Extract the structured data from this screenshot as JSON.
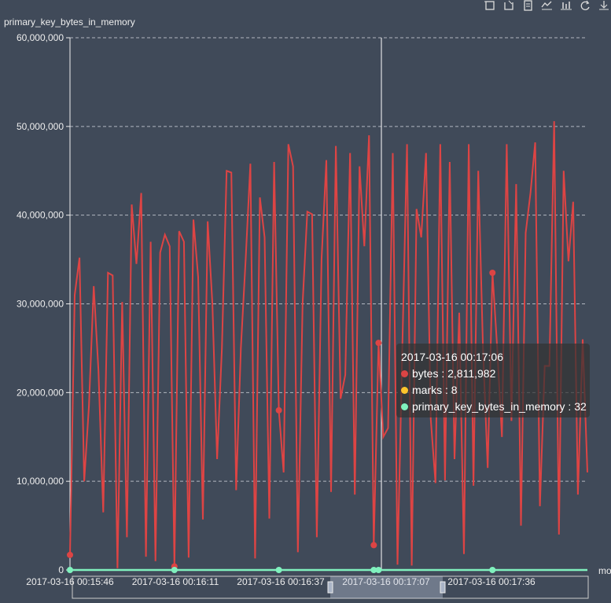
{
  "toolbox": {
    "icons": [
      "zoom-icon",
      "zoom-reset-icon",
      "data-view-icon",
      "line-type-icon",
      "bar-type-icon",
      "restore-icon",
      "save-image-icon"
    ]
  },
  "tooltip": {
    "title": "2017-03-16 00:17:06",
    "rows": [
      {
        "label": "bytes",
        "value": "2,811,982",
        "color": "#dd4444"
      },
      {
        "label": "marks",
        "value": "8",
        "color": "#fec42c"
      },
      {
        "label": "primary_key_bytes_in_memory",
        "value": "32",
        "color": "#80f1be"
      }
    ]
  },
  "chart_data": {
    "type": "line",
    "title": "",
    "ylabel": "primary_key_bytes_in_memory",
    "xlabel": "mo",
    "ylim": [
      0,
      60000000
    ],
    "yticks": [
      "0",
      "10,000,000",
      "20,000,000",
      "30,000,000",
      "40,000,000",
      "50,000,000",
      "60,000,000"
    ],
    "xticks": [
      "2017-03-16 00:15:46",
      "2017-03-16 00:16:11",
      "2017-03-16 00:16:37",
      "2017-03-16 00:17:07",
      "2017-03-16 00:17:36"
    ],
    "grid": true,
    "colors": {
      "bytes": "#dd4444",
      "marks": "#fec42c",
      "primary_key_bytes_in_memory": "#80f1be"
    },
    "cursor_x": "2017-03-16 00:17:06",
    "series": [
      {
        "name": "bytes",
        "values": [
          1700000,
          31000000,
          35200000,
          10000000,
          18500000,
          32000000,
          22500000,
          6500000,
          33500000,
          33200000,
          200000,
          30200000,
          3700000,
          41200000,
          34500000,
          42500000,
          1500000,
          37000000,
          1000000,
          35800000,
          37800000,
          36500000,
          400000,
          38200000,
          37000000,
          1400000,
          39500000,
          33000000,
          5700000,
          39300000,
          30000000,
          12500000,
          25000000,
          45000000,
          44800000,
          9000000,
          25000000,
          35000000,
          45800000,
          1300000,
          42000000,
          37500000,
          5800000,
          46000000,
          18000000,
          11000000,
          48000000,
          45500000,
          2000000,
          30000000,
          40400000,
          40100000,
          3700000,
          35000000,
          46200000,
          8800000,
          47800000,
          19300000,
          22000000,
          47000000,
          8500000,
          45500000,
          36500000,
          49000000,
          2800000,
          25600000,
          15000000,
          16000000,
          47000000,
          600000,
          25000000,
          48000000,
          500000,
          40700000,
          37500000,
          47000000,
          17000000,
          9800000,
          48000000,
          10100000,
          46000000,
          12500000,
          29000000,
          1800000,
          48000000,
          9500000,
          45000000,
          25000000,
          11500000,
          33500000,
          25000000,
          15000000,
          48000000,
          16800000,
          43500000,
          5000000,
          38000000,
          42500000,
          48200000,
          7200000,
          23000000,
          23000000,
          50600000,
          4000000,
          45000000,
          34800000,
          41500000,
          8500000,
          26000000,
          11000000
        ]
      },
      {
        "name": "primary_key_bytes_in_memory",
        "values": [
          32,
          32,
          32,
          32,
          32,
          32,
          32,
          32,
          32,
          32,
          32,
          32,
          32,
          32,
          32,
          32,
          32,
          32,
          32,
          32,
          32,
          32,
          32,
          32,
          32,
          32,
          32,
          32,
          32,
          32,
          32,
          32,
          32,
          32,
          32,
          32,
          32,
          32,
          32,
          32,
          32,
          32,
          32,
          32,
          32,
          32,
          32,
          32,
          32,
          32,
          32,
          32,
          32,
          32,
          32,
          32,
          32,
          32,
          32,
          32,
          32,
          32,
          32,
          32,
          32,
          32,
          32,
          32,
          32,
          32,
          32,
          32,
          32,
          32,
          32,
          32,
          32,
          32,
          32,
          32,
          32,
          32,
          32,
          32,
          32,
          32,
          32,
          32,
          32,
          32,
          32,
          32,
          32,
          32,
          32,
          32,
          32,
          32,
          32,
          32,
          32,
          32,
          32,
          32,
          32,
          32,
          32,
          32,
          32,
          32
        ]
      }
    ],
    "highlighted_indices": [
      0,
      22,
      44,
      64,
      65,
      89
    ]
  }
}
